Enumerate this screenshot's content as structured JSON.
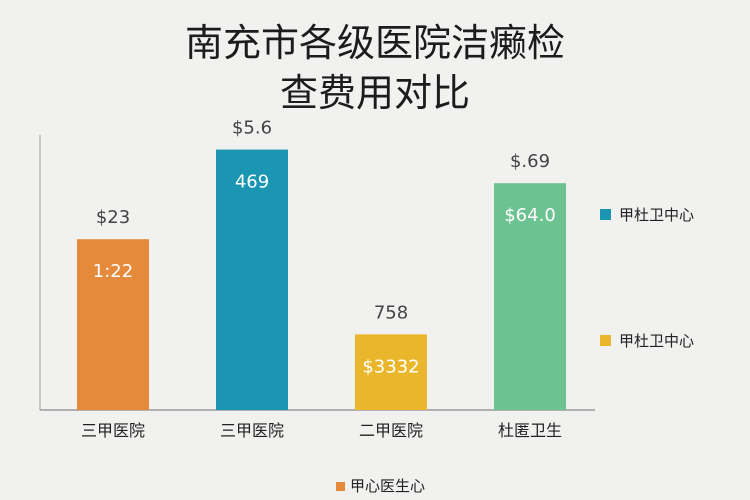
{
  "chart_data": {
    "type": "bar",
    "title_line1": "南充市各级医院洁癞检",
    "title_line2": "查费用对比",
    "categories": [
      "三甲医院",
      "三甲医院",
      "二甲医院",
      "杜匿卫生"
    ],
    "values": [
      0.61,
      0.93,
      0.27,
      0.81
    ],
    "value_labels_top": [
      "$23",
      "$5.6",
      "758",
      "$.69"
    ],
    "value_labels_inside": [
      "1:22",
      "469",
      "$3332",
      "$64.0"
    ],
    "colors": [
      "#e5893b",
      "#1a96b3",
      "#eab72c",
      "#6cc291"
    ],
    "legend": [
      {
        "label": "甲杜卫中心",
        "color": "#1a96b3"
      },
      {
        "label": "甲杜卫中心",
        "color": "#eab72c"
      }
    ],
    "bottom_legend": {
      "label": "甲心医生心",
      "color": "#e5893b"
    },
    "legend_position": "right"
  }
}
